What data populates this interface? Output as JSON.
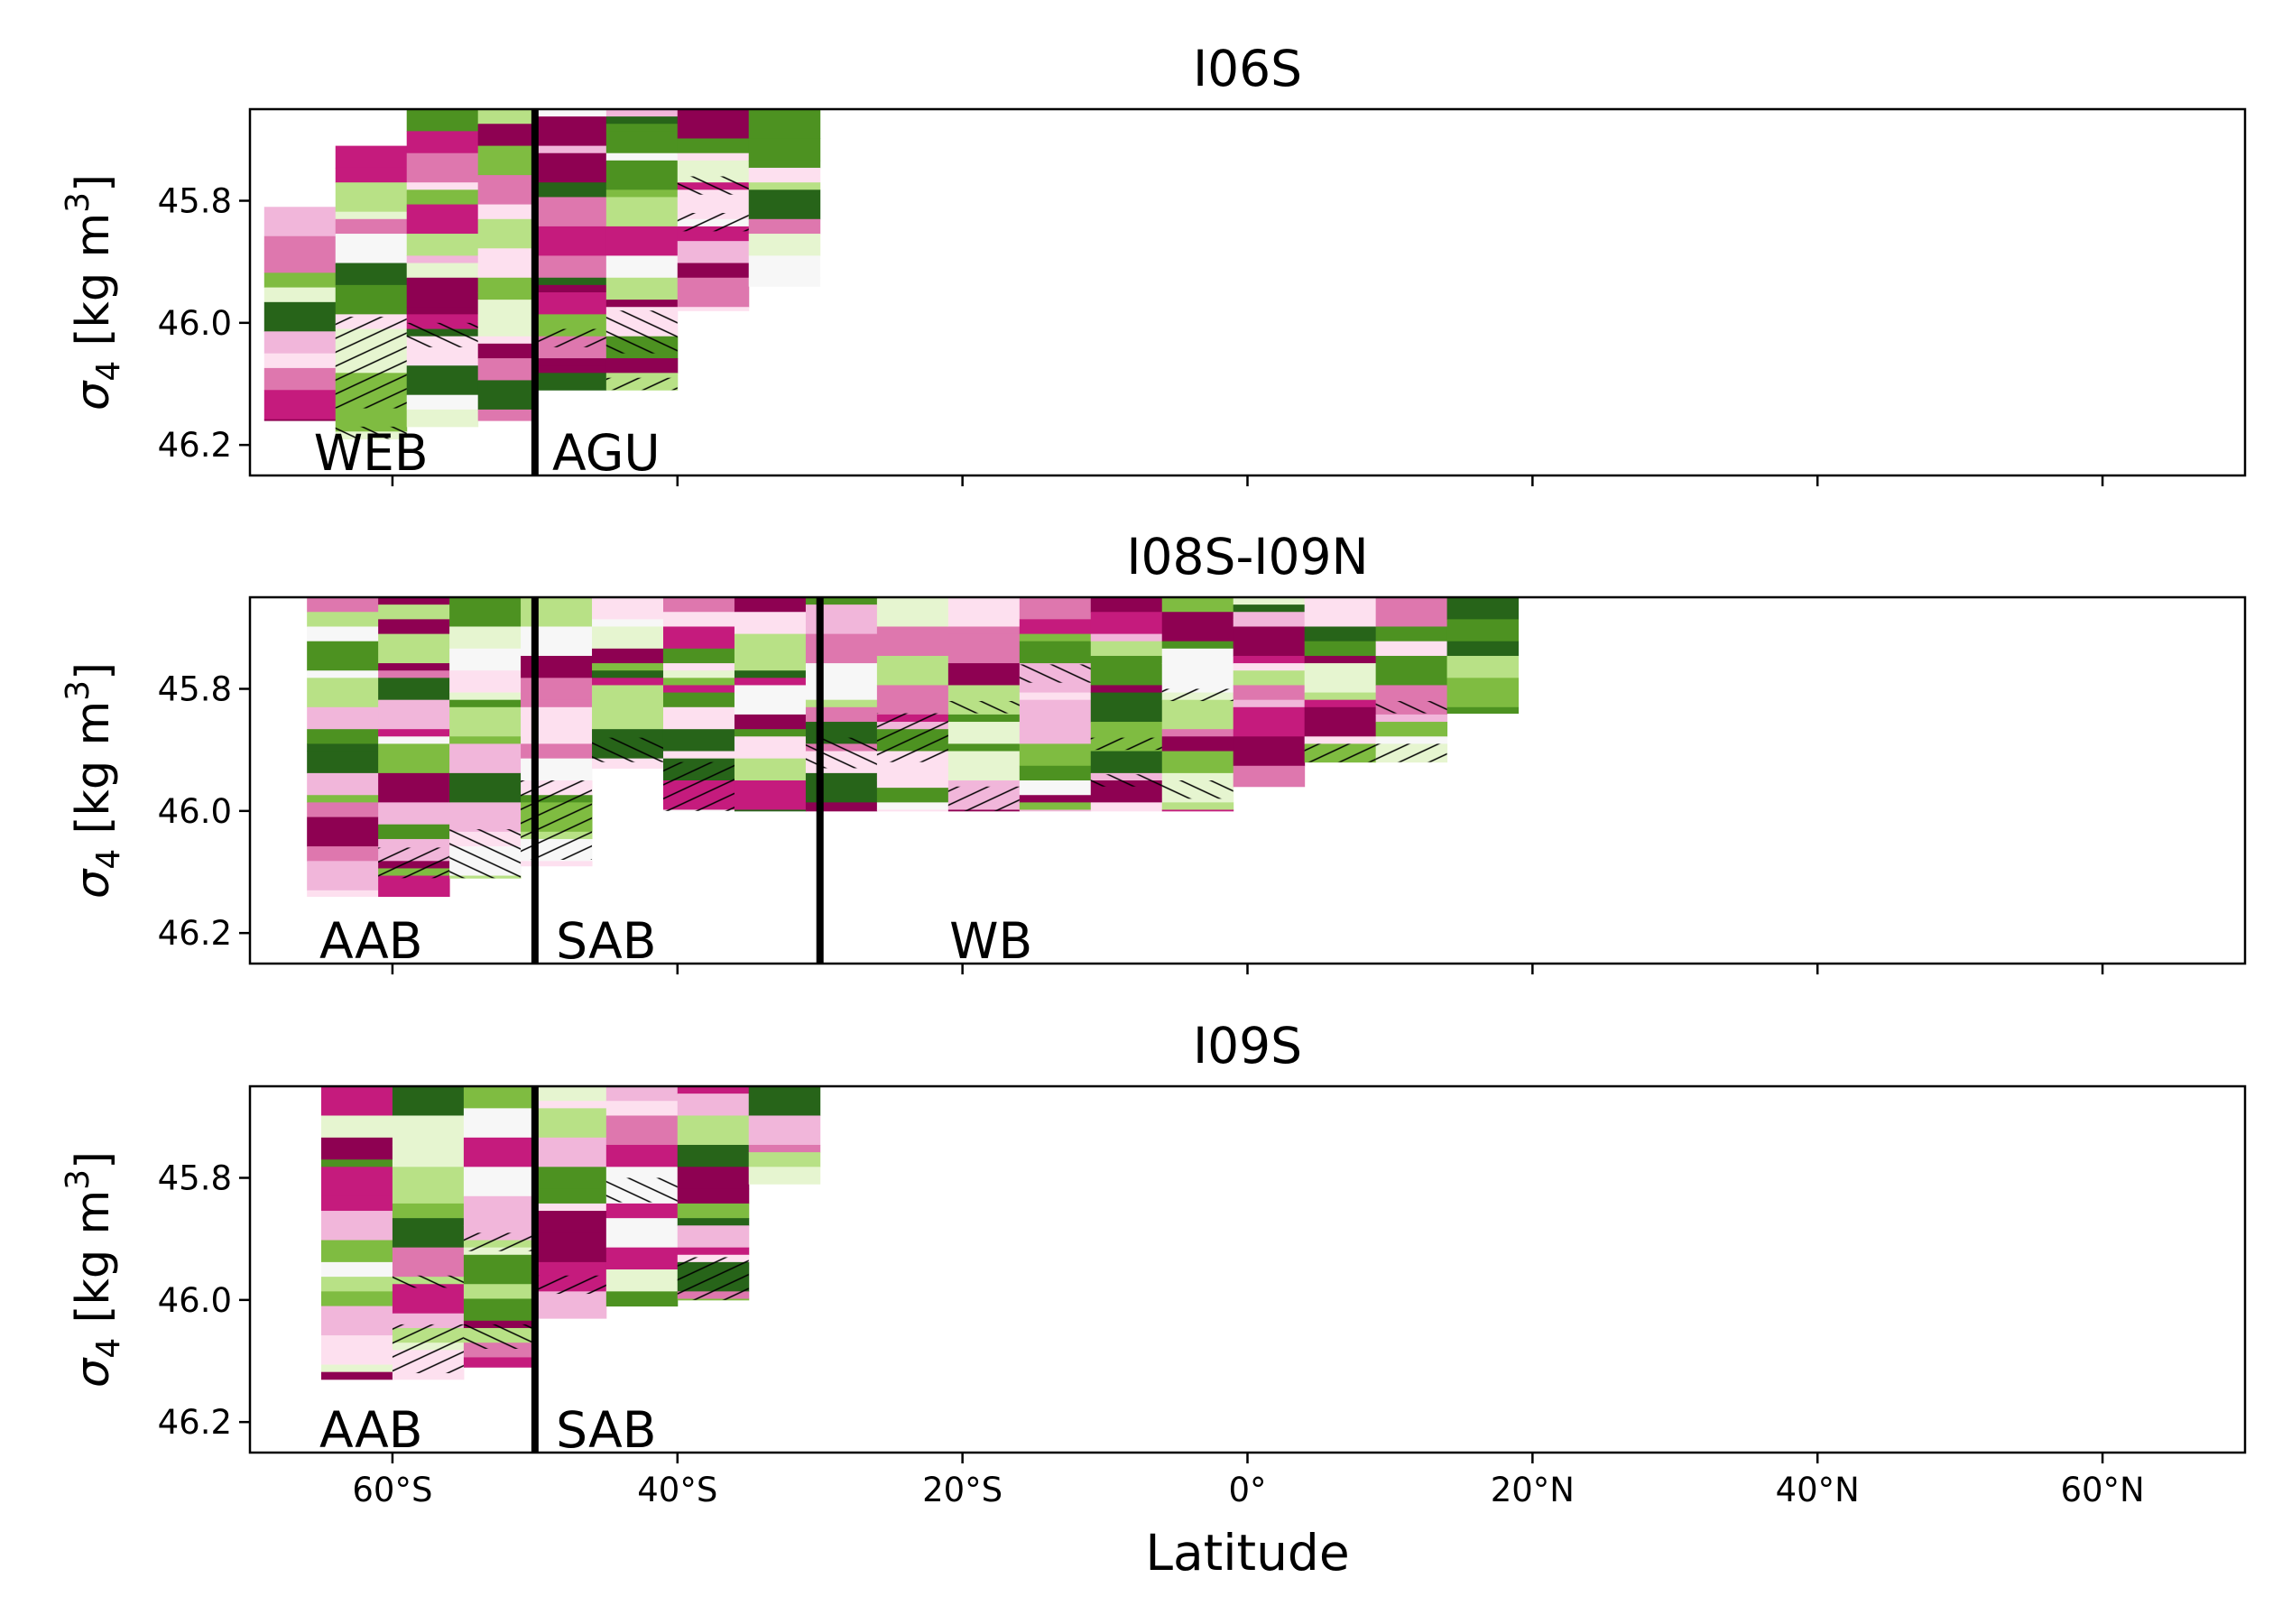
{
  "chart_data": [
    {
      "type": "heatmap",
      "title": "I06S",
      "ylabel": "σ4 [kg m3]",
      "xlabel": "",
      "xlim": [
        -70,
        70
      ],
      "ylim": [
        46.25,
        45.65
      ],
      "yticks": [
        45.8,
        46.0,
        46.2
      ],
      "ytick_labels": [
        "45.8",
        "46.0",
        "46.2"
      ],
      "xtick_labels_shown": false,
      "boundaries": [
        -50
      ],
      "regions": [
        {
          "label": "WEB",
          "x": -61.5
        },
        {
          "label": "AGU",
          "x": -45.0
        }
      ],
      "columns": [
        {
          "x0": -69,
          "x1": -64,
          "y0": 45.81,
          "y1": 46.16,
          "seed": 11
        },
        {
          "x0": -64,
          "x1": -59,
          "y0": 45.71,
          "y1": 46.19,
          "seed": 12
        },
        {
          "x0": -59,
          "x1": -54,
          "y0": 45.65,
          "y1": 46.17,
          "seed": 13
        },
        {
          "x0": -54,
          "x1": -50,
          "y0": 45.65,
          "y1": 46.16,
          "seed": 14
        },
        {
          "x0": -50,
          "x1": -45,
          "y0": 45.65,
          "y1": 46.11,
          "seed": 15
        },
        {
          "x0": -45,
          "x1": -40,
          "y0": 45.65,
          "y1": 46.11,
          "seed": 16
        },
        {
          "x0": -40,
          "x1": -35,
          "y0": 45.65,
          "y1": 45.98,
          "seed": 17
        },
        {
          "x0": -35,
          "x1": -30,
          "y0": 45.65,
          "y1": 45.94,
          "seed": 18
        }
      ],
      "hatched": [
        {
          "x0": -64,
          "x1": -59,
          "y0": 45.99,
          "y1": 46.14
        },
        {
          "x0": -59,
          "x1": -54,
          "y0": 46.0,
          "y1": 46.04
        },
        {
          "x0": -50,
          "x1": -45,
          "y0": 46.01,
          "y1": 46.04
        },
        {
          "x0": -45,
          "x1": -40,
          "y0": 45.98,
          "y1": 46.05
        },
        {
          "x0": -45,
          "x1": -40,
          "y0": 46.09,
          "y1": 46.11
        },
        {
          "x0": -40,
          "x1": -35,
          "y0": 45.76,
          "y1": 45.79
        },
        {
          "x0": -40,
          "x1": -35,
          "y0": 45.82,
          "y1": 45.85
        },
        {
          "x0": -64,
          "x1": -59,
          "y0": 46.17,
          "y1": 46.19
        }
      ]
    },
    {
      "type": "heatmap",
      "title": "I08S-I09N",
      "ylabel": "σ4 [kg m3]",
      "xlabel": "",
      "xlim": [
        -70,
        70
      ],
      "ylim": [
        46.25,
        45.65
      ],
      "yticks": [
        45.8,
        46.0,
        46.2
      ],
      "ytick_labels": [
        "45.8",
        "46.0",
        "46.2"
      ],
      "xtick_labels_shown": false,
      "boundaries": [
        -50,
        -30
      ],
      "regions": [
        {
          "label": "AAB",
          "x": -61.5
        },
        {
          "label": "SAB",
          "x": -45.0
        },
        {
          "label": "WB",
          "x": -18.0
        }
      ],
      "columns": [
        {
          "x0": -66,
          "x1": -61,
          "y0": 45.65,
          "y1": 46.14,
          "seed": 21
        },
        {
          "x0": -61,
          "x1": -56,
          "y0": 45.65,
          "y1": 46.14,
          "seed": 22
        },
        {
          "x0": -56,
          "x1": -51,
          "y0": 45.65,
          "y1": 46.11,
          "seed": 23
        },
        {
          "x0": -51,
          "x1": -46,
          "y0": 45.65,
          "y1": 46.09,
          "seed": 24
        },
        {
          "x0": -46,
          "x1": -41,
          "y0": 45.65,
          "y1": 45.93,
          "seed": 25
        },
        {
          "x0": -41,
          "x1": -36,
          "y0": 45.65,
          "y1": 46.0,
          "seed": 26
        },
        {
          "x0": -36,
          "x1": -31,
          "y0": 45.65,
          "y1": 46.0,
          "seed": 27
        },
        {
          "x0": -31,
          "x1": -26,
          "y0": 45.65,
          "y1": 46.0,
          "seed": 28
        },
        {
          "x0": -26,
          "x1": -21,
          "y0": 45.65,
          "y1": 46.0,
          "seed": 29
        },
        {
          "x0": -21,
          "x1": -16,
          "y0": 45.65,
          "y1": 46.0,
          "seed": 30
        },
        {
          "x0": -16,
          "x1": -11,
          "y0": 45.65,
          "y1": 46.0,
          "seed": 31
        },
        {
          "x0": -11,
          "x1": -6,
          "y0": 45.65,
          "y1": 46.0,
          "seed": 32
        },
        {
          "x0": -6,
          "x1": -1,
          "y0": 45.65,
          "y1": 46.0,
          "seed": 33
        },
        {
          "x0": -1,
          "x1": 4,
          "y0": 45.65,
          "y1": 45.96,
          "seed": 34
        },
        {
          "x0": 4,
          "x1": 9,
          "y0": 45.65,
          "y1": 45.92,
          "seed": 35
        },
        {
          "x0": 9,
          "x1": 14,
          "y0": 45.65,
          "y1": 45.92,
          "seed": 36
        },
        {
          "x0": 14,
          "x1": 19,
          "y0": 45.65,
          "y1": 45.84,
          "seed": 37
        }
      ],
      "hatched": [
        {
          "x0": -61,
          "x1": -56,
          "y0": 46.06,
          "y1": 46.11
        },
        {
          "x0": -56,
          "x1": -51,
          "y0": 46.03,
          "y1": 46.11
        },
        {
          "x0": -51,
          "x1": -46,
          "y0": 45.95,
          "y1": 46.08
        },
        {
          "x0": -46,
          "x1": -41,
          "y0": 45.88,
          "y1": 45.92
        },
        {
          "x0": -41,
          "x1": -36,
          "y0": 45.92,
          "y1": 46.0
        },
        {
          "x0": -31,
          "x1": -26,
          "y0": 45.88,
          "y1": 45.93
        },
        {
          "x0": -26,
          "x1": -21,
          "y0": 45.84,
          "y1": 45.92
        },
        {
          "x0": -21,
          "x1": -16,
          "y0": 45.82,
          "y1": 45.84
        },
        {
          "x0": -21,
          "x1": -16,
          "y0": 45.96,
          "y1": 46.0
        },
        {
          "x0": -16,
          "x1": -11,
          "y0": 45.76,
          "y1": 45.79
        },
        {
          "x0": -11,
          "x1": -6,
          "y0": 45.88,
          "y1": 45.9
        },
        {
          "x0": -11,
          "x1": -6,
          "y0": 45.94,
          "y1": 45.96
        },
        {
          "x0": -6,
          "x1": -1,
          "y0": 45.8,
          "y1": 45.82
        },
        {
          "x0": -6,
          "x1": -1,
          "y0": 45.95,
          "y1": 45.98
        },
        {
          "x0": 4,
          "x1": 9,
          "y0": 45.89,
          "y1": 45.92
        },
        {
          "x0": 9,
          "x1": 14,
          "y0": 45.82,
          "y1": 45.84
        },
        {
          "x0": 9,
          "x1": 14,
          "y0": 45.89,
          "y1": 45.92
        }
      ]
    },
    {
      "type": "heatmap",
      "title": "I09S",
      "ylabel": "σ4 [kg m3]",
      "xlabel": "Latitude",
      "xlim": [
        -70,
        70
      ],
      "ylim": [
        46.25,
        45.65
      ],
      "yticks": [
        45.8,
        46.0,
        46.2
      ],
      "ytick_labels": [
        "45.8",
        "46.0",
        "46.2"
      ],
      "xticks": [
        -60,
        -40,
        -20,
        0,
        20,
        40,
        60
      ],
      "xtick_labels": [
        "60°S",
        "40°S",
        "20°S",
        "0°",
        "20°N",
        "40°N",
        "60°N"
      ],
      "boundaries": [
        -50
      ],
      "regions": [
        {
          "label": "AAB",
          "x": -61.5
        },
        {
          "label": "SAB",
          "x": -45.0
        }
      ],
      "columns": [
        {
          "x0": -65,
          "x1": -60,
          "y0": 45.65,
          "y1": 46.13,
          "seed": 41
        },
        {
          "x0": -60,
          "x1": -55,
          "y0": 45.65,
          "y1": 46.13,
          "seed": 42
        },
        {
          "x0": -55,
          "x1": -50,
          "y0": 45.65,
          "y1": 46.11,
          "seed": 43
        },
        {
          "x0": -50,
          "x1": -45,
          "y0": 45.65,
          "y1": 46.03,
          "seed": 44
        },
        {
          "x0": -45,
          "x1": -40,
          "y0": 45.65,
          "y1": 46.01,
          "seed": 45
        },
        {
          "x0": -40,
          "x1": -35,
          "y0": 45.65,
          "y1": 46.0,
          "seed": 46
        },
        {
          "x0": -35,
          "x1": -30,
          "y0": 45.65,
          "y1": 45.81,
          "seed": 47
        }
      ],
      "hatched": [
        {
          "x0": -60,
          "x1": -55,
          "y0": 46.04,
          "y1": 46.12
        },
        {
          "x0": -55,
          "x1": -50,
          "y0": 46.04,
          "y1": 46.08
        },
        {
          "x0": -55,
          "x1": -50,
          "y0": 45.89,
          "y1": 45.92
        },
        {
          "x0": -60,
          "x1": -55,
          "y0": 45.96,
          "y1": 45.98
        },
        {
          "x0": -50,
          "x1": -45,
          "y0": 45.96,
          "y1": 45.99
        },
        {
          "x0": -45,
          "x1": -40,
          "y0": 45.8,
          "y1": 45.84
        },
        {
          "x0": -40,
          "x1": -35,
          "y0": 45.93,
          "y1": 46.0
        }
      ]
    }
  ]
}
